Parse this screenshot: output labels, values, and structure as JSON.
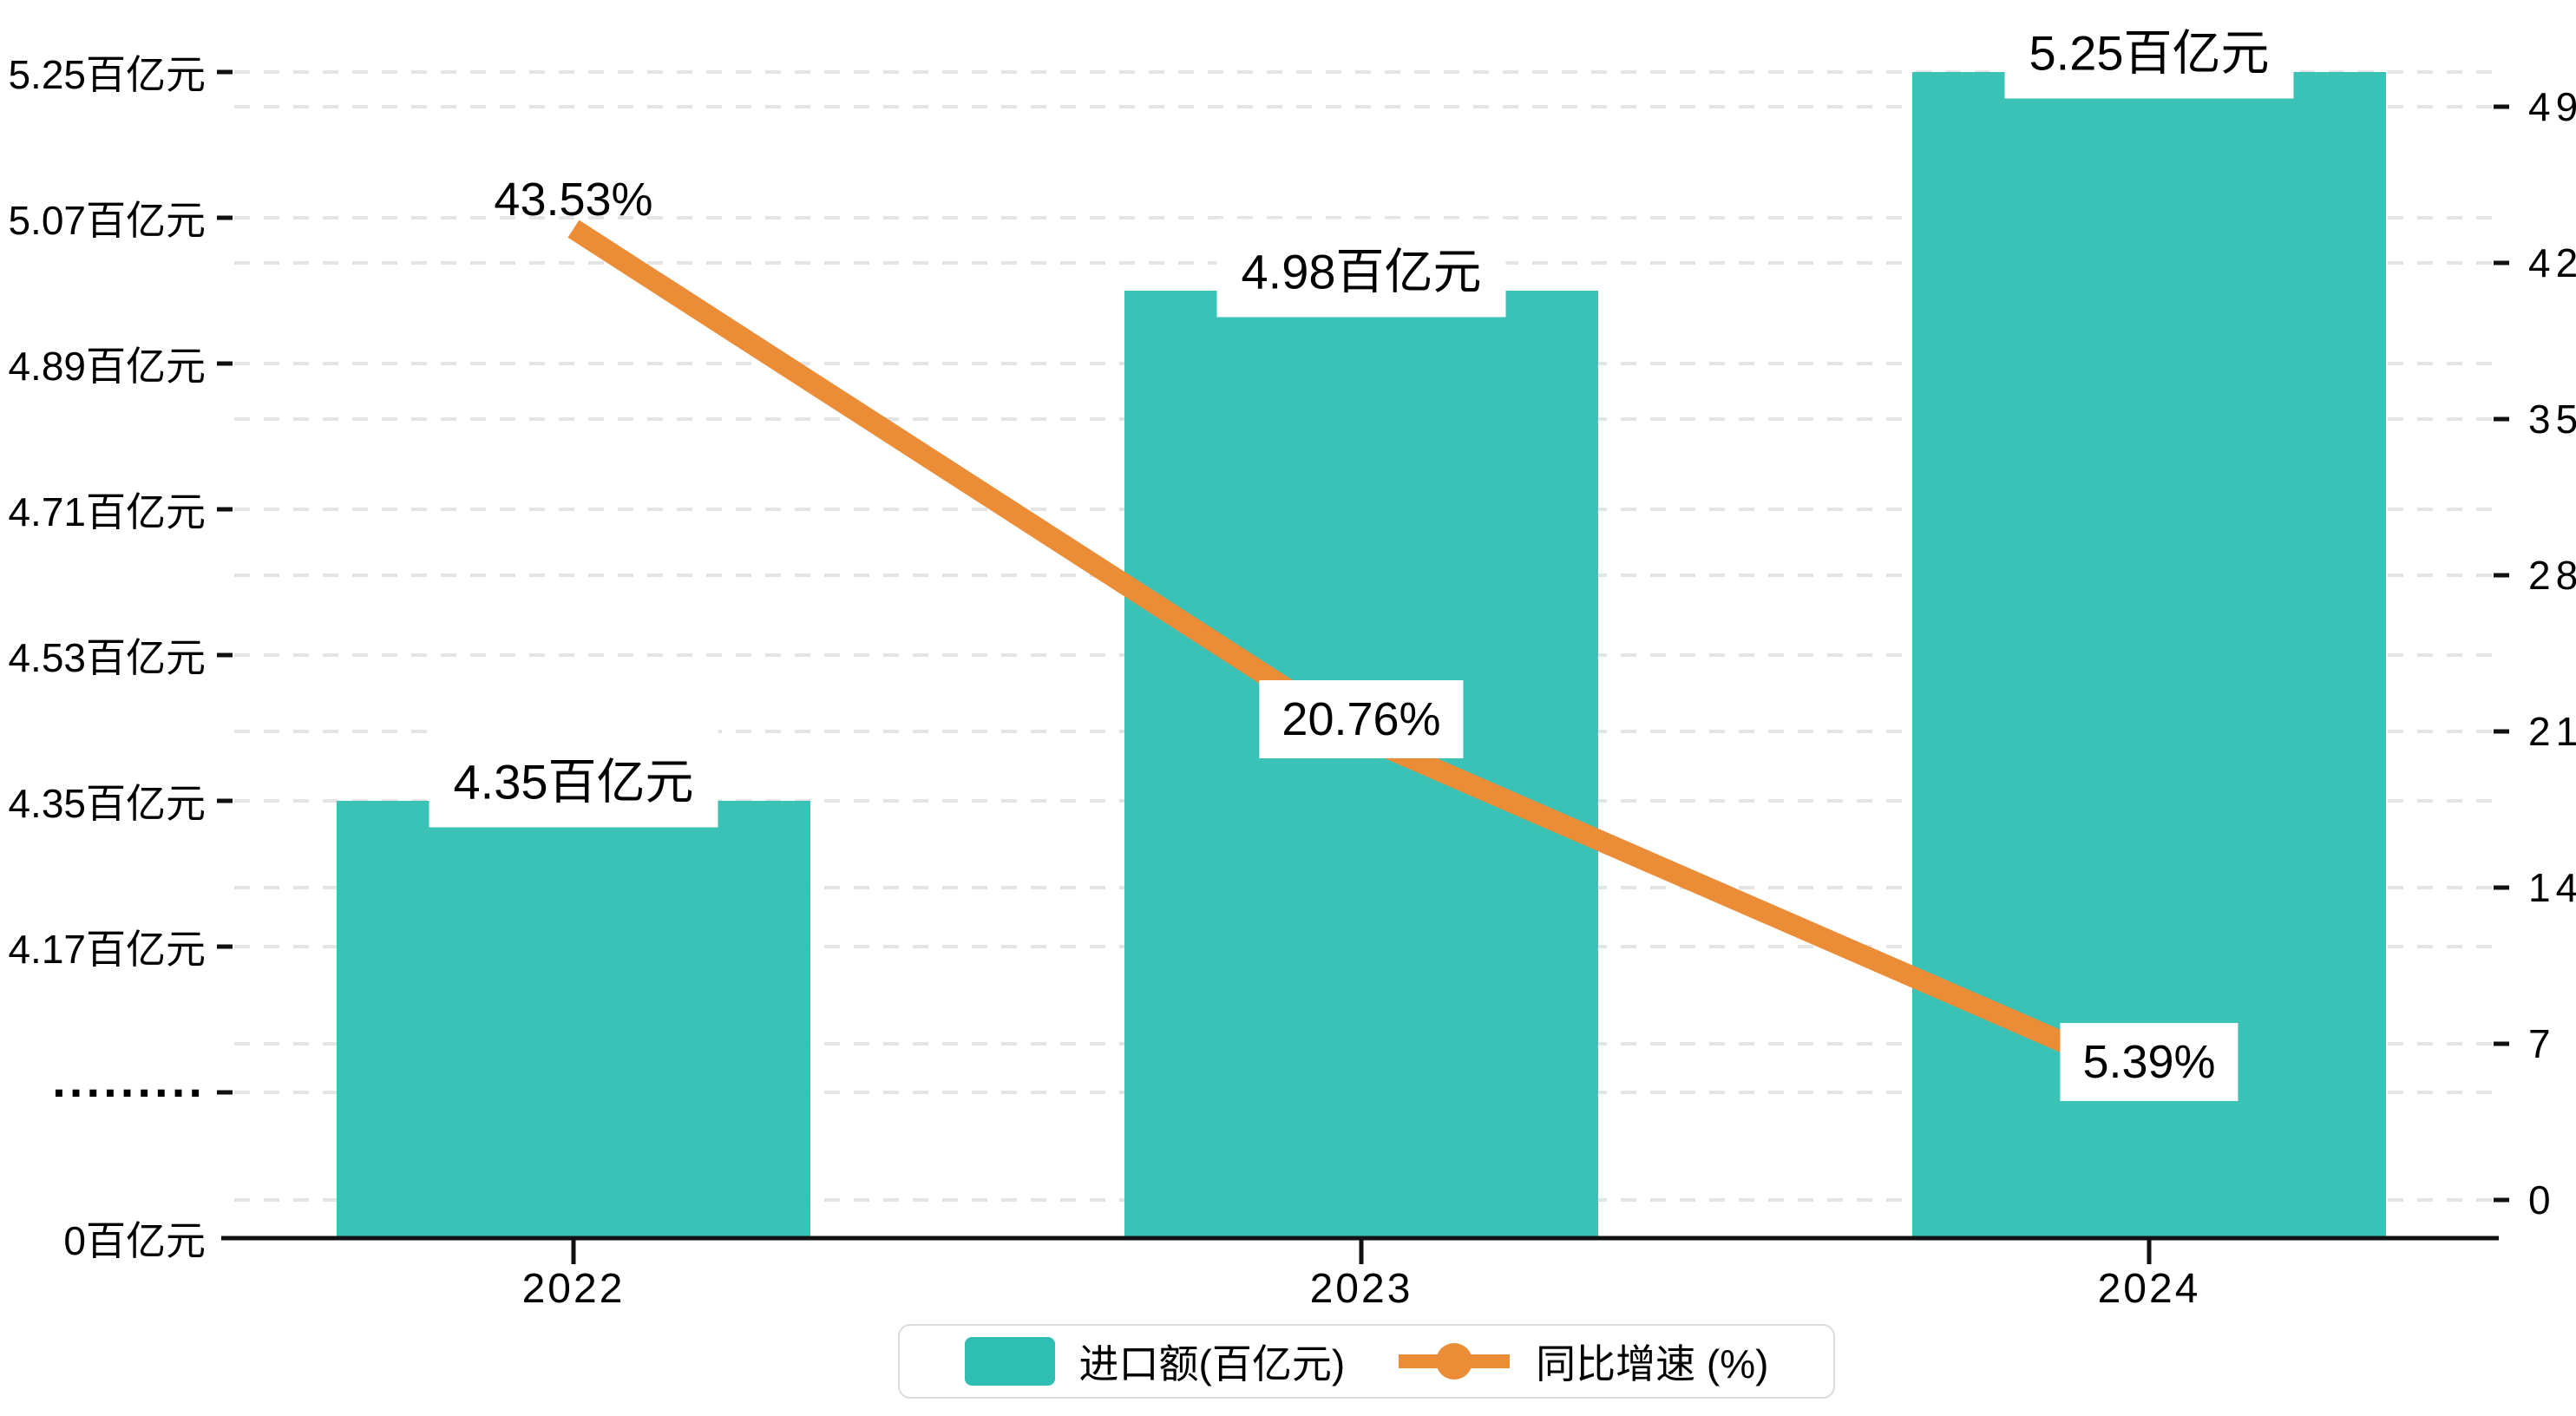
{
  "chart_data": {
    "type": "bar+line dual-axis combo",
    "categories": [
      "2022",
      "2023",
      "2024"
    ],
    "series": [
      {
        "name": "进口额(百亿元)",
        "type": "bar",
        "axis": "left",
        "values": [
          4.35,
          4.98,
          5.25
        ],
        "labels": [
          "4.35百亿元",
          "4.98百亿元",
          "5.25百亿元"
        ]
      },
      {
        "name": "同比增速 (%)",
        "type": "line",
        "axis": "right",
        "values": [
          43.53,
          20.76,
          5.39
        ],
        "labels": [
          "43.53%",
          "20.76%",
          "5.39%"
        ]
      }
    ],
    "left_axis": {
      "unit": "百亿元",
      "broken_axis": true,
      "tick_labels": [
        "5.25百亿元",
        "5.07百亿元",
        "4.89百亿元",
        "4.71百亿元",
        "4.53百亿元",
        "4.35百亿元",
        "4.17百亿元",
        "·········",
        "0百亿元"
      ],
      "tick_values": [
        5.25,
        5.07,
        4.89,
        4.71,
        4.53,
        4.35,
        4.17,
        null,
        0
      ]
    },
    "right_axis": {
      "unit": "%",
      "tick_labels": [
        "49",
        "42",
        "35",
        "28",
        "21",
        "14",
        "7",
        "0"
      ],
      "tick_values": [
        49,
        42,
        35,
        28,
        21,
        14,
        7,
        0
      ],
      "range": [
        0,
        49
      ]
    },
    "grid": "horizontal dashed, both axes",
    "legend_position": "bottom-center",
    "colors": {
      "bar": "#2FBEB2",
      "line": "#EB8C37",
      "grid": "#E4E4E4",
      "axis": "#111111",
      "text": "#000000",
      "legend_border": "#DBDBDB",
      "label_bg": "#FFFFFF"
    }
  }
}
